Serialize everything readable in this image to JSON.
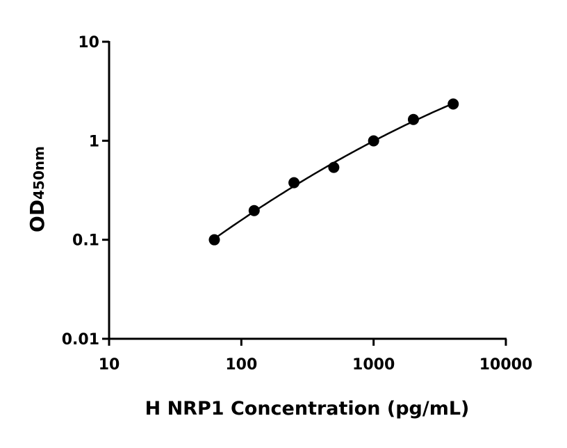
{
  "chart_data": {
    "type": "scatter",
    "title": "",
    "xlabel": "H NRP1 Concentration (pg/mL)",
    "ylabel": "OD",
    "ylabel_subscript": "450nm",
    "x_scale": "log",
    "y_scale": "log",
    "xlim": [
      10,
      10000
    ],
    "ylim": [
      0.01,
      10
    ],
    "x_ticks": [
      10,
      100,
      1000,
      10000
    ],
    "x_tick_labels": [
      "10",
      "100",
      "1000",
      "10000"
    ],
    "y_ticks": [
      0.01,
      0.1,
      1,
      10
    ],
    "y_tick_labels": [
      "0.01",
      "0.1",
      "1",
      "10"
    ],
    "grid": false,
    "points": {
      "x": [
        62.5,
        125,
        250,
        500,
        1000,
        2000,
        4000
      ],
      "y": [
        0.1,
        0.197,
        0.377,
        0.538,
        0.997,
        1.64,
        2.35
      ]
    },
    "fit_curve": true,
    "color": "#000000"
  }
}
